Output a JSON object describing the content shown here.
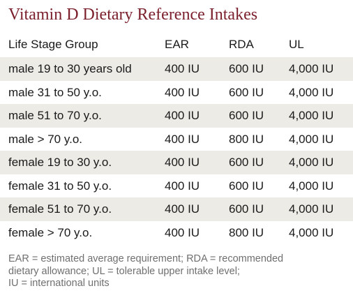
{
  "title": "Vitamin D Dietary Reference Intakes",
  "table": {
    "headers": [
      "Life Stage Group",
      "EAR",
      "RDA",
      "UL"
    ],
    "rows": [
      [
        "male 19 to 30 years old",
        "400 IU",
        "600 IU",
        "4,000 IU"
      ],
      [
        "male 31 to 50 y.o.",
        "400 IU",
        "600 IU",
        "4,000 IU"
      ],
      [
        "male 51 to 70 y.o.",
        "400 IU",
        "600 IU",
        "4,000 IU"
      ],
      [
        "male > 70 y.o.",
        "400 IU",
        "800 IU",
        "4,000 IU"
      ],
      [
        "female 19 to 30 y.o.",
        "400 IU",
        "600 IU",
        "4,000 IU"
      ],
      [
        "female 31 to 50 y.o.",
        "400 IU",
        "600 IU",
        "4,000 IU"
      ],
      [
        "female 51 to 70 y.o.",
        "400 IU",
        "600 IU",
        "4,000 IU"
      ],
      [
        "female > 70 y.o.",
        "400 IU",
        "800 IU",
        "4,000 IU"
      ]
    ]
  },
  "footnote": {
    "line1": "EAR = estimated average requirement; RDA = recommended",
    "line2": "dietary allowance; UL = tolerable upper intake level;",
    "line3": "IU = international units"
  },
  "colors": {
    "title": "#7a1f2b",
    "shaded_row": "#ecebe6",
    "footnote": "#6f6f6f"
  }
}
